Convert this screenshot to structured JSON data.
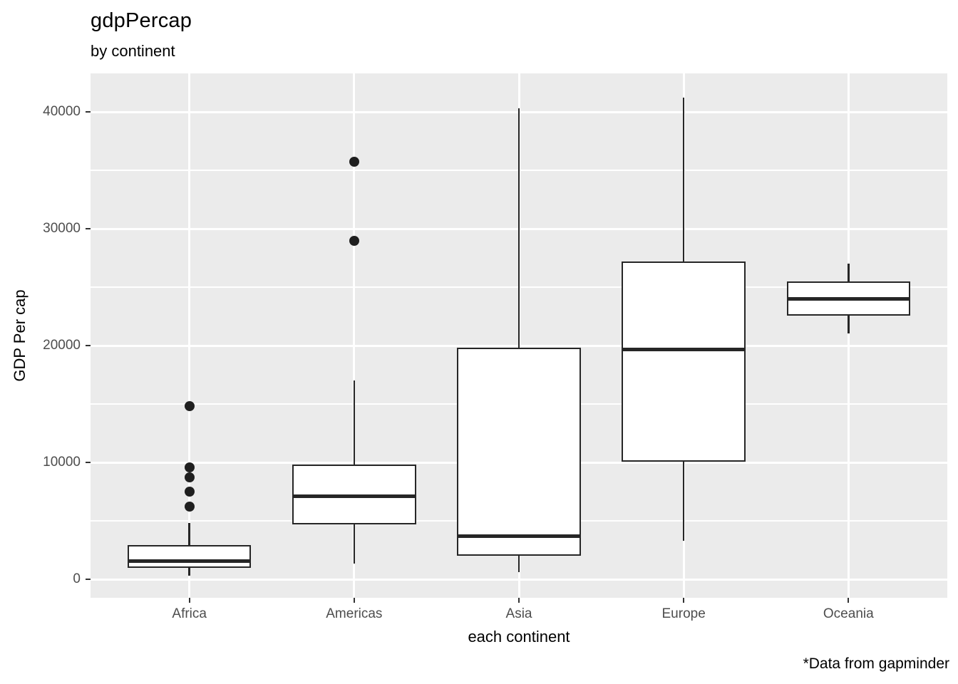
{
  "chart_data": {
    "type": "boxplot",
    "title": "gdpPercap",
    "subtitle": "by continent",
    "xlabel": "each continent",
    "ylabel": "GDP Per cap",
    "caption": "*Data from gapminder",
    "categories": [
      "Africa",
      "Americas",
      "Asia",
      "Europe",
      "Oceania"
    ],
    "series": [
      {
        "name": "Africa",
        "whisker_low": 300,
        "q1": 950,
        "median": 1550,
        "q3": 2950,
        "whisker_high": 4800,
        "outliers": [
          6200,
          7500,
          8700,
          9600,
          14800
        ]
      },
      {
        "name": "Americas",
        "whisker_low": 1350,
        "q1": 4700,
        "median": 7100,
        "q3": 9800,
        "whisker_high": 17000,
        "outliers": [
          28950,
          35750
        ]
      },
      {
        "name": "Asia",
        "whisker_low": 600,
        "q1": 2000,
        "median": 3700,
        "q3": 19800,
        "whisker_high": 40300,
        "outliers": []
      },
      {
        "name": "Europe",
        "whisker_low": 3300,
        "q1": 10050,
        "median": 19650,
        "q3": 27200,
        "whisker_high": 41250,
        "outliers": []
      },
      {
        "name": "Oceania",
        "whisker_low": 21050,
        "q1": 22550,
        "median": 24000,
        "q3": 25500,
        "whisker_high": 27000,
        "outliers": []
      }
    ],
    "y_ticks": [
      0,
      10000,
      20000,
      30000,
      40000
    ],
    "y_minor": [
      5000,
      15000,
      25000,
      35000
    ],
    "ylim": [
      -1585,
      43293
    ],
    "grid": "white major and minor horizontal lines plus vertical line per category on grey panel",
    "legend": "none"
  },
  "style": {
    "panel_bg": "#EBEBEB",
    "grid_color": "#FFFFFF",
    "box_line_color": "#262626",
    "box_fill_color": "#FFFFFF",
    "outlier_color": "#1F1F1F",
    "tick_label_color": "#4D4D4D",
    "tick_mark_color": "#333333",
    "text_color": "#000000",
    "page_bg": "#FFFFFF"
  }
}
